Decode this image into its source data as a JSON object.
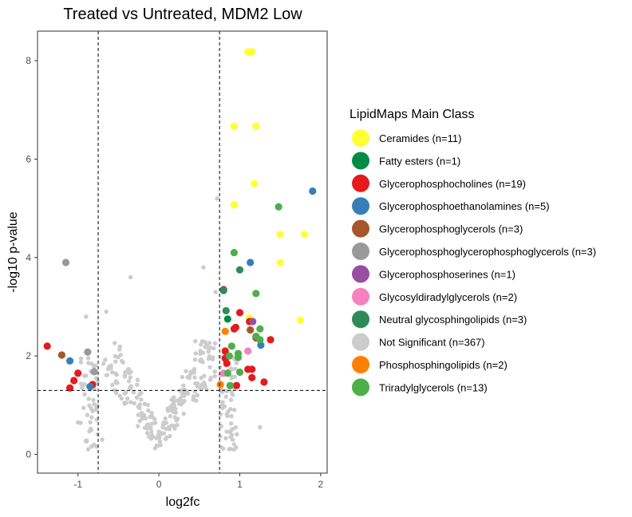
{
  "chart_data": {
    "type": "scatter",
    "title": "Treated vs Untreated, MDM2 Low",
    "xlabel": "log2fc",
    "ylabel": "-log10 p-value",
    "xlim": [
      -1.5,
      2.08
    ],
    "ylim": [
      -0.38,
      8.6
    ],
    "x_ticks": [
      -1,
      0,
      1,
      2
    ],
    "y_ticks": [
      0,
      2,
      4,
      6,
      8
    ],
    "thresholds": {
      "x": [
        -0.75,
        0.75
      ],
      "y": 1.3
    },
    "grid": false,
    "legend_position": "right",
    "legend_title": "LipidMaps Main Class",
    "series": [
      {
        "name": "Ceramides (n=11)",
        "color": "#FFFF33",
        "points": [
          [
            1.1,
            8.18
          ],
          [
            1.15,
            8.18
          ],
          [
            0.93,
            6.67
          ],
          [
            1.2,
            6.67
          ],
          [
            1.18,
            5.5
          ],
          [
            0.93,
            5.07
          ],
          [
            1.5,
            4.47
          ],
          [
            1.8,
            4.47
          ],
          [
            1.5,
            3.9
          ],
          [
            1.75,
            2.73
          ],
          [
            1.12,
            2.78
          ]
        ]
      },
      {
        "name": "Fatty esters (n=1)",
        "color": "#008B45",
        "points": [
          [
            0.85,
            2.75
          ]
        ]
      },
      {
        "name": "Glycerophosphocholines (n=19)",
        "color": "#E41A1C",
        "points": [
          [
            -1.38,
            2.2
          ],
          [
            -1.05,
            1.5
          ],
          [
            -1.1,
            1.35
          ],
          [
            -1.0,
            1.65
          ],
          [
            0.82,
            2.1
          ],
          [
            0.82,
            1.95
          ],
          [
            0.84,
            1.85
          ],
          [
            0.93,
            2.55
          ],
          [
            0.95,
            2.58
          ],
          [
            1.0,
            2.88
          ],
          [
            1.12,
            2.7
          ],
          [
            1.2,
            2.37
          ],
          [
            1.38,
            2.33
          ],
          [
            1.1,
            1.73
          ],
          [
            1.15,
            1.73
          ],
          [
            1.15,
            1.56
          ],
          [
            0.96,
            1.4
          ],
          [
            1.3,
            1.47
          ],
          [
            -0.82,
            1.42
          ]
        ]
      },
      {
        "name": "Glycerophosphoethanolamines (n=5)",
        "color": "#377EB8",
        "points": [
          [
            -1.1,
            1.9
          ],
          [
            -0.85,
            1.38
          ],
          [
            1.13,
            3.9
          ],
          [
            1.26,
            2.22
          ],
          [
            1.9,
            5.35
          ]
        ]
      },
      {
        "name": "Glycerophosphoglycerols (n=3)",
        "color": "#A65628",
        "points": [
          [
            -1.2,
            2.02
          ],
          [
            1.13,
            2.53
          ],
          [
            0.8,
            3.35
          ]
        ]
      },
      {
        "name": "Glycerophosphoglycerophosphoglycerols (n=3)",
        "color": "#999999",
        "points": [
          [
            -1.15,
            3.9
          ],
          [
            -0.88,
            2.08
          ],
          [
            -0.8,
            1.68
          ]
        ]
      },
      {
        "name": "Glycerophosphoserines (n=1)",
        "color": "#984EA3",
        "points": [
          [
            1.16,
            2.7
          ]
        ]
      },
      {
        "name": "Glycosyldiradylglycerols (n=2)",
        "color": "#F781BF",
        "points": [
          [
            1.1,
            2.1
          ],
          [
            0.8,
            1.65
          ]
        ]
      },
      {
        "name": "Neutral glycosphingolipids (n=3)",
        "color": "#2E8B57",
        "points": [
          [
            1.0,
            3.75
          ],
          [
            0.83,
            2.92
          ],
          [
            0.8,
            3.33
          ]
        ]
      },
      {
        "name": "Not Significant (n=367)",
        "color": "#CCCCCC",
        "points": []
      },
      {
        "name": "Phosphosphingolipids (n=2)",
        "color": "#FF7F00",
        "points": [
          [
            0.82,
            2.5
          ],
          [
            0.76,
            1.42
          ]
        ]
      },
      {
        "name": "Triradylglycerols (n=13)",
        "color": "#4DAF4A",
        "points": [
          [
            1.48,
            5.03
          ],
          [
            0.93,
            4.1
          ],
          [
            1.2,
            3.27
          ],
          [
            0.9,
            2.2
          ],
          [
            0.87,
            2.0
          ],
          [
            0.98,
            2.05
          ],
          [
            0.98,
            1.97
          ],
          [
            1.25,
            2.55
          ],
          [
            1.2,
            2.4
          ],
          [
            1.25,
            2.33
          ],
          [
            0.85,
            1.65
          ],
          [
            1.0,
            1.67
          ],
          [
            0.88,
            1.4
          ]
        ]
      }
    ]
  }
}
